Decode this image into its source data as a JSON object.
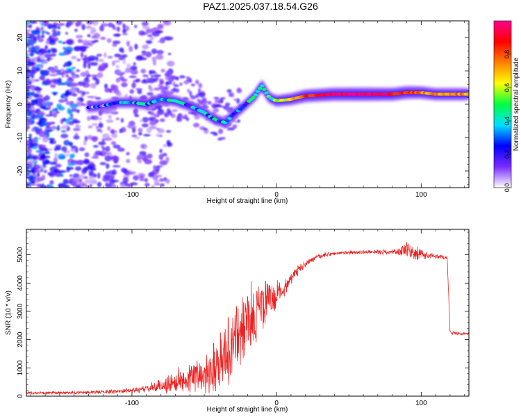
{
  "title": "PAZ1.2025.037.18.54.G26",
  "chart_data": [
    {
      "type": "heatmap",
      "xlabel": "Height of straight line (km)",
      "ylabel": "Frequency (Hz)",
      "xlim": [
        -173,
        133
      ],
      "ylim": [
        -25,
        25
      ],
      "xticks": [
        -100,
        0,
        100
      ],
      "yticks": [
        -20,
        -10,
        0,
        10,
        20
      ],
      "colorbar": {
        "label": "Normalized spectral amplitude",
        "range": [
          0,
          1
        ],
        "ticks": [
          "0.0",
          "0.2",
          "0.4",
          "0.6",
          "0.8"
        ],
        "colors": [
          "#ffffff",
          "#7b2cff",
          "#0000ff",
          "#00e0ff",
          "#00ff40",
          "#ffff00",
          "#ff8000",
          "#ff0000",
          "#ff0090"
        ]
      },
      "ridge": {
        "x": [
          -130,
          -120,
          -110,
          -100,
          -90,
          -80,
          -70,
          -60,
          -50,
          -45,
          -40,
          -35,
          -30,
          -25,
          -20,
          -15,
          -12,
          -10,
          -5,
          0,
          10,
          20,
          40,
          60,
          80,
          90,
          100,
          110,
          120,
          133
        ],
        "frequency": [
          -1,
          -0.5,
          0.5,
          0.5,
          0,
          1.5,
          1,
          -0.5,
          -2.5,
          -4,
          -5,
          -5.5,
          -3,
          -1.5,
          0.5,
          2.5,
          4.5,
          5.5,
          2,
          1,
          1.5,
          2.5,
          3,
          3,
          3,
          3.5,
          3.5,
          3,
          3,
          3
        ],
        "amplitude": [
          0.15,
          0.2,
          0.3,
          0.3,
          0.4,
          0.35,
          0.35,
          0.3,
          0.35,
          0.35,
          0.35,
          0.3,
          0.3,
          0.3,
          0.35,
          0.4,
          0.45,
          0.45,
          0.45,
          0.5,
          0.65,
          0.85,
          0.95,
          1.0,
          0.9,
          0.85,
          0.75,
          0.75,
          0.75,
          0.7
        ]
      }
    },
    {
      "type": "line",
      "xlabel": "Height of straight line (km)",
      "ylabel": "SNR (10 * v/v)",
      "xlim": [
        -173,
        133
      ],
      "ylim": [
        0,
        5900
      ],
      "xticks": [
        -100,
        0,
        100
      ],
      "yticks": [
        0,
        1000,
        2000,
        3000,
        4000,
        5000
      ],
      "color": "#ee2222",
      "x": [
        -173,
        -160,
        -140,
        -120,
        -100,
        -90,
        -80,
        -70,
        -60,
        -50,
        -40,
        -35,
        -30,
        -25,
        -20,
        -15,
        -10,
        -5,
        0,
        5,
        10,
        20,
        30,
        40,
        60,
        80,
        90,
        95,
        100,
        110,
        118,
        120,
        125,
        133
      ],
      "y": [
        120,
        110,
        120,
        150,
        200,
        260,
        350,
        500,
        650,
        800,
        1200,
        1500,
        1900,
        2300,
        2600,
        2900,
        3200,
        3400,
        3550,
        3800,
        4200,
        4700,
        4950,
        5050,
        5100,
        5100,
        5150,
        5050,
        5000,
        4950,
        4900,
        2250,
        2200,
        2200
      ],
      "spread": [
        60,
        60,
        70,
        80,
        100,
        150,
        300,
        500,
        600,
        800,
        1300,
        1500,
        1600,
        1600,
        1500,
        1400,
        1200,
        900,
        600,
        400,
        250,
        150,
        100,
        80,
        80,
        100,
        350,
        400,
        200,
        100,
        80,
        60,
        60,
        60
      ]
    }
  ]
}
